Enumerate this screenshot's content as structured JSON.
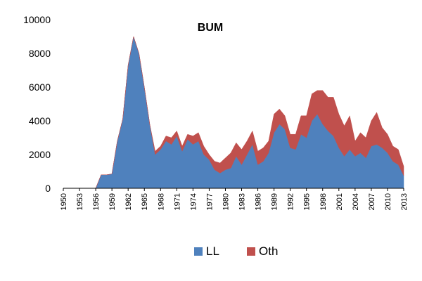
{
  "chart_data": {
    "type": "area",
    "stacked": true,
    "title": "BUM",
    "xlabel": "",
    "ylabel": "",
    "ylim": [
      0,
      10000
    ],
    "yticks": [
      0,
      2000,
      4000,
      6000,
      8000,
      10000
    ],
    "xlim": [
      1950,
      2013
    ],
    "xticks": [
      1950,
      1953,
      1956,
      1959,
      1962,
      1965,
      1968,
      1971,
      1974,
      1977,
      1980,
      1983,
      1986,
      1989,
      1992,
      1995,
      1998,
      2001,
      2004,
      2007,
      2010,
      2013
    ],
    "grid": false,
    "legend_position": "bottom",
    "x": [
      1950,
      1951,
      1952,
      1953,
      1954,
      1955,
      1956,
      1957,
      1958,
      1959,
      1960,
      1961,
      1962,
      1963,
      1964,
      1965,
      1966,
      1967,
      1968,
      1969,
      1970,
      1971,
      1972,
      1973,
      1974,
      1975,
      1976,
      1977,
      1978,
      1979,
      1980,
      1981,
      1982,
      1983,
      1984,
      1985,
      1986,
      1987,
      1988,
      1989,
      1990,
      1991,
      1992,
      1993,
      1994,
      1995,
      1996,
      1997,
      1998,
      1999,
      2000,
      2001,
      2002,
      2003,
      2004,
      2005,
      2006,
      2007,
      2008,
      2009,
      2010,
      2011,
      2012,
      2013
    ],
    "series": [
      {
        "name": "LL",
        "color": "#4F81BD",
        "values": [
          0,
          0,
          0,
          0,
          0,
          0,
          0,
          800,
          800,
          850,
          2800,
          4100,
          7300,
          9000,
          8000,
          6000,
          3800,
          2000,
          2300,
          2800,
          2600,
          3100,
          2200,
          2900,
          2600,
          2800,
          2000,
          1700,
          1100,
          900,
          1100,
          1200,
          1900,
          1400,
          2000,
          2600,
          1400,
          1600,
          2100,
          3300,
          3800,
          3500,
          2400,
          2300,
          3200,
          3000,
          4000,
          4400,
          3800,
          3400,
          3100,
          2400,
          1900,
          2300,
          1900,
          2100,
          1800,
          2500,
          2600,
          2400,
          2100,
          1600,
          1400,
          750
        ]
      },
      {
        "name": "Oth",
        "color": "#C0504D",
        "values": [
          0,
          0,
          0,
          0,
          0,
          0,
          0,
          0,
          0,
          0,
          0,
          0,
          0,
          0,
          0,
          0,
          0,
          200,
          200,
          300,
          400,
          300,
          300,
          300,
          500,
          500,
          500,
          300,
          500,
          600,
          700,
          900,
          800,
          900,
          800,
          800,
          800,
          800,
          700,
          1100,
          900,
          800,
          800,
          900,
          1100,
          1300,
          1600,
          1400,
          2000,
          2000,
          2300,
          2000,
          1800,
          2000,
          900,
          1200,
          1200,
          1500,
          1900,
          1200,
          1100,
          900,
          900,
          550
        ]
      }
    ]
  }
}
